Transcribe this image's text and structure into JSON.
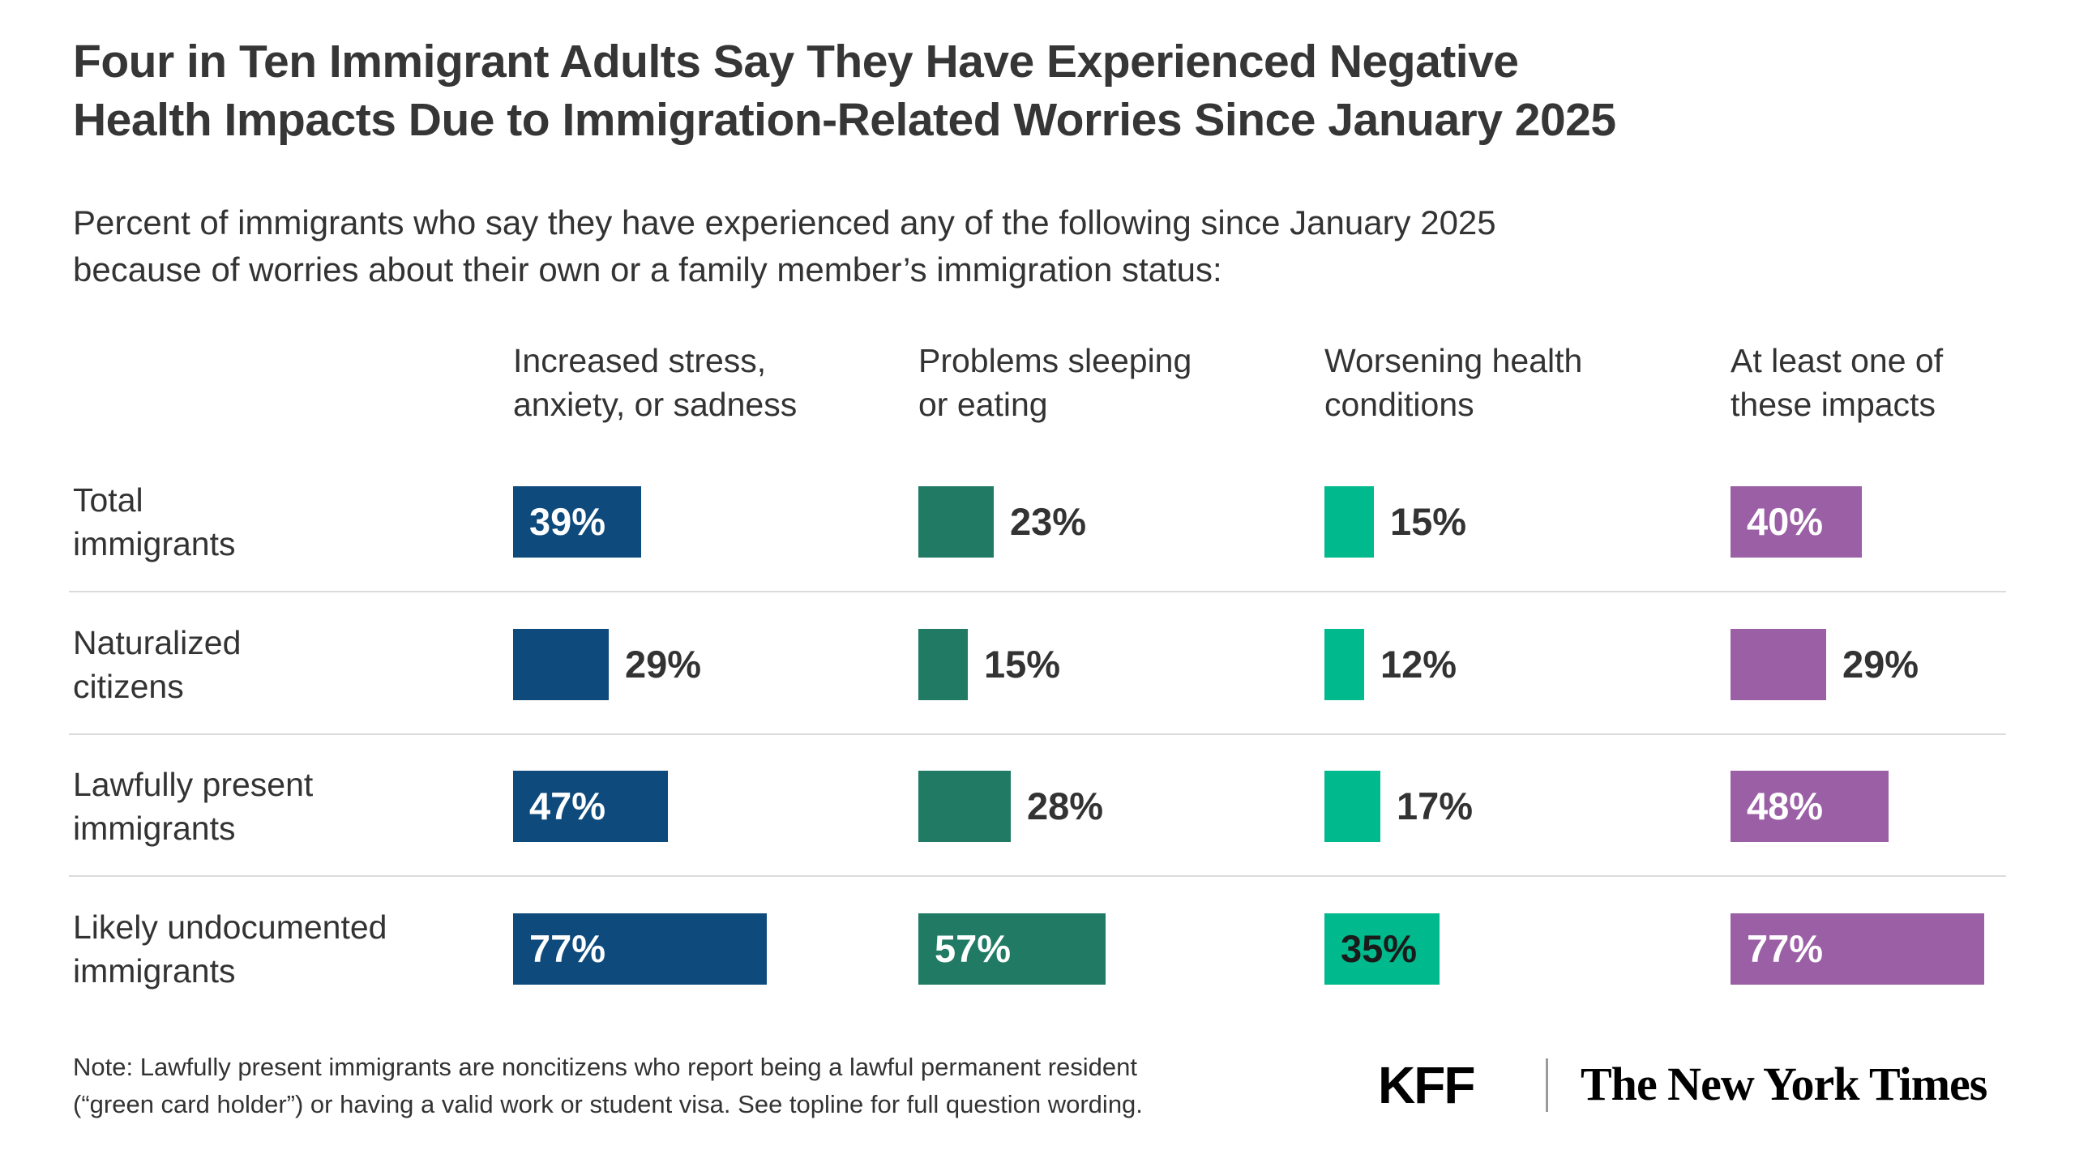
{
  "title_lines": [
    "Four in Ten Immigrant Adults Say They Have Experienced Negative",
    "Health Impacts Due to Immigration-Related Worries Since January 2025"
  ],
  "subtitle_lines": [
    "Percent of immigrants who say they have experienced any of the following since January 2025",
    "because of worries about their own or a family member’s immigration status:"
  ],
  "chart_data": {
    "type": "bar",
    "unit": "percent",
    "xlim": [
      0,
      100
    ],
    "grid": "row-separators-only",
    "columns": [
      "Increased stress, anxiety, or sadness",
      "Problems sleeping or eating",
      "Worsening health conditions",
      "At least one of these impacts"
    ],
    "column_header_lines": [
      [
        "Increased stress,",
        "anxiety, or sadness"
      ],
      [
        "Problems sleeping",
        "or eating"
      ],
      [
        "Worsening health",
        "conditions"
      ],
      [
        "At least one of",
        "these impacts"
      ]
    ],
    "column_colors": [
      "#0E4A7C",
      "#207A64",
      "#00B98C",
      "#9B5FA6"
    ],
    "rows": [
      {
        "label": "Total immigrants",
        "values": [
          39,
          23,
          15,
          40
        ]
      },
      {
        "label": "Naturalized citizens",
        "values": [
          29,
          15,
          12,
          29
        ]
      },
      {
        "label": "Lawfully present immigrants",
        "values": [
          47,
          28,
          17,
          48
        ]
      },
      {
        "label": "Likely undocumented immigrants",
        "values": [
          77,
          57,
          35,
          77
        ]
      }
    ],
    "row_label_lines": [
      [
        "Total",
        "immigrants"
      ],
      [
        "Naturalized",
        "citizens"
      ],
      [
        "Lawfully present",
        "immigrants"
      ],
      [
        "Likely undocumented",
        "immigrants"
      ]
    ],
    "value_labels": [
      [
        "39%",
        "23%",
        "15%",
        "40%"
      ],
      [
        "29%",
        "15%",
        "12%",
        "29%"
      ],
      [
        "47%",
        "28%",
        "17%",
        "48%"
      ],
      [
        "77%",
        "57%",
        "35%",
        "77%"
      ]
    ],
    "label_layout": [
      [
        "inside",
        "outside",
        "outside",
        "inside"
      ],
      [
        "outside",
        "outside",
        "outside",
        "outside"
      ],
      [
        "inside",
        "outside",
        "outside",
        "inside"
      ],
      [
        "inside",
        "inside",
        "inside",
        "inside"
      ]
    ],
    "inside_label_colors": [
      "#ffffff",
      "#ffffff",
      "#1a1a1a",
      "#ffffff"
    ],
    "outside_label_color": "#333333"
  },
  "note_lines": [
    "Note: Lawfully present immigrants are noncitizens who report being a lawful permanent resident",
    "(“green card holder”) or having a valid work or student visa. See topline for full question wording."
  ],
  "logos": {
    "kff": "KFF",
    "nyt": "The New York Times"
  }
}
